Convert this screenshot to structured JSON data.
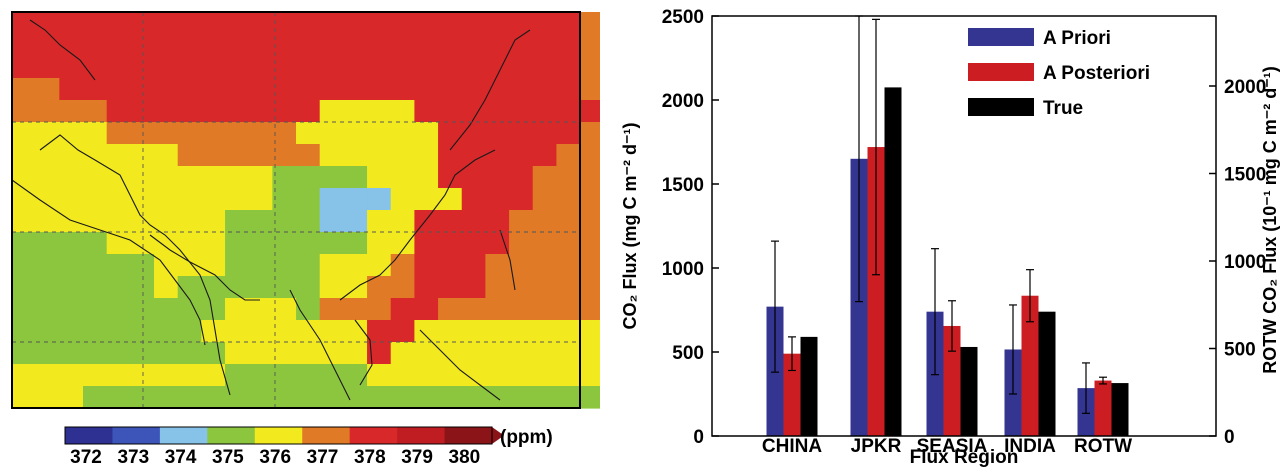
{
  "map": {
    "colorbar_unit": "(ppm)",
    "colorbar_ticks": [
      "372",
      "373",
      "374",
      "375",
      "376",
      "377",
      "378",
      "379",
      "380"
    ],
    "colorbar_colors": [
      "#2e3192",
      "#3d55b8",
      "#87c3e8",
      "#8cc63f",
      "#f2ea1e",
      "#e07a26",
      "#d9282a",
      "#c01d22",
      "#8b1418"
    ]
  },
  "chart_data": {
    "type": "bar",
    "xlabel": "Flux Region",
    "ylabel_left": "CO₂ Flux (mg C m⁻² d⁻¹)",
    "ylabel_right": "ROTW CO₂ Flux (10⁻¹ mg C m⁻² d⁻¹)",
    "ylim_left": [
      0,
      2500
    ],
    "yticks_left": [
      0,
      500,
      1000,
      1500,
      2000,
      2500
    ],
    "ylim_right": [
      0,
      2400
    ],
    "yticks_right": [
      0,
      500,
      1000,
      1500,
      2000
    ],
    "legend_position": "top-right",
    "categories": [
      "CHINA",
      "JPKR",
      "SEASIA",
      "INDIA",
      "ROTW"
    ],
    "series": [
      {
        "name": "A Priori",
        "color": "#343491",
        "values": [
          770,
          1650,
          740,
          515,
          285
        ],
        "error": [
          390,
          850,
          375,
          265,
          150
        ]
      },
      {
        "name": "A Posteriori",
        "color": "#cc1e22",
        "values": [
          490,
          1720,
          655,
          835,
          330
        ],
        "error": [
          100,
          760,
          150,
          155,
          20
        ]
      },
      {
        "name": "True",
        "color": "#000000",
        "values": [
          590,
          2075,
          530,
          740,
          315
        ],
        "error": [
          0,
          0,
          0,
          0,
          0
        ]
      }
    ]
  }
}
